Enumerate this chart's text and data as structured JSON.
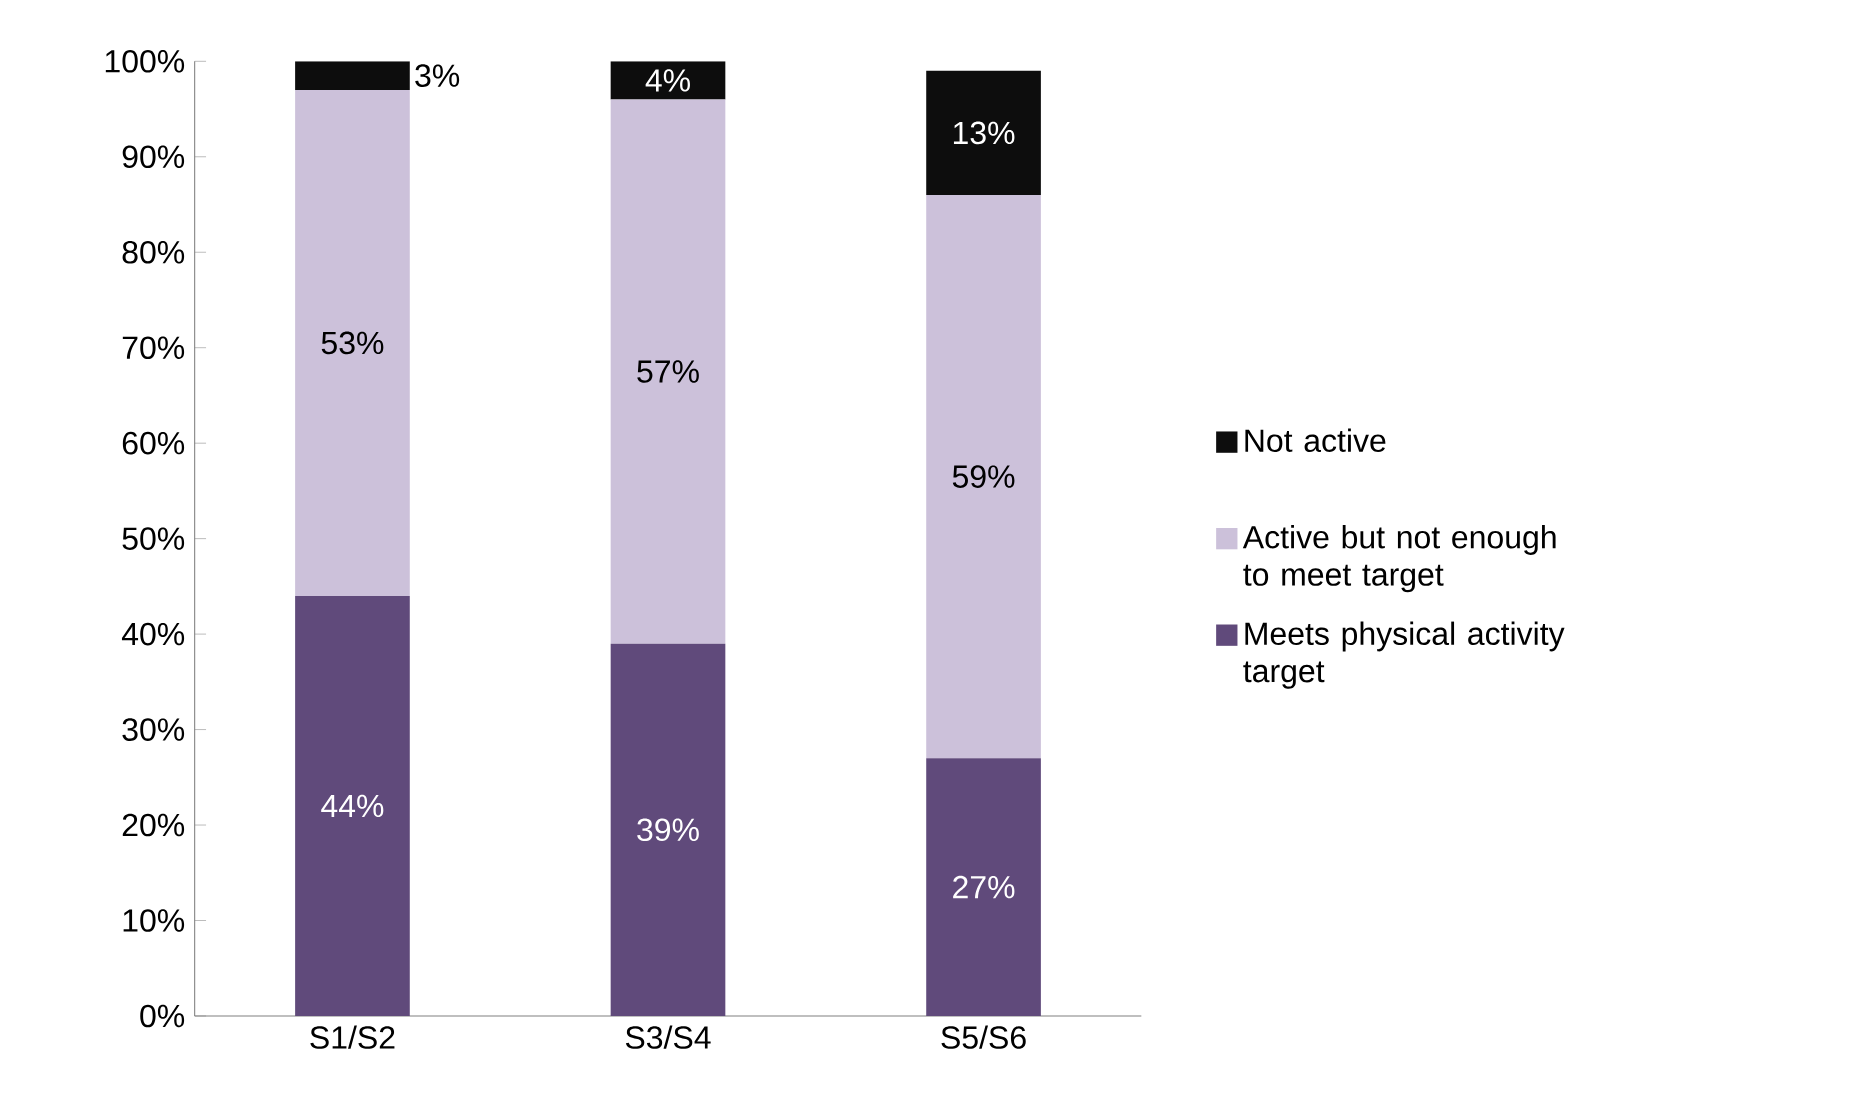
{
  "chart_data": {
    "type": "bar",
    "stacked": true,
    "categories": [
      "S1/S2",
      "S3/S4",
      "S5/S6"
    ],
    "series": [
      {
        "name": "Meets physical activity target",
        "color": "#604a7b",
        "values": [
          44,
          39,
          27
        ],
        "value_labels": [
          "44%",
          "39%",
          "27%"
        ]
      },
      {
        "name": "Active but not enough to meet target",
        "color": "#ccc1da",
        "values": [
          53,
          57,
          59
        ],
        "value_labels": [
          "53%",
          "57%",
          "59%"
        ]
      },
      {
        "name": "Not active",
        "color": "#0d0d0d",
        "values": [
          3,
          4,
          13
        ],
        "value_labels": [
          "3%",
          "4%",
          "13%"
        ]
      }
    ],
    "ylim": [
      0,
      100
    ],
    "yticks": [
      {
        "value": 0,
        "label": "0%"
      },
      {
        "value": 10,
        "label": "10%"
      },
      {
        "value": 20,
        "label": "20%"
      },
      {
        "value": 30,
        "label": "30%"
      },
      {
        "value": 40,
        "label": "40%"
      },
      {
        "value": 50,
        "label": "50%"
      },
      {
        "value": 60,
        "label": "60%"
      },
      {
        "value": 70,
        "label": "70%"
      },
      {
        "value": 80,
        "label": "80%"
      },
      {
        "value": 90,
        "label": "90%"
      },
      {
        "value": 100,
        "label": "100%"
      }
    ],
    "legend": "right",
    "grid": false
  }
}
